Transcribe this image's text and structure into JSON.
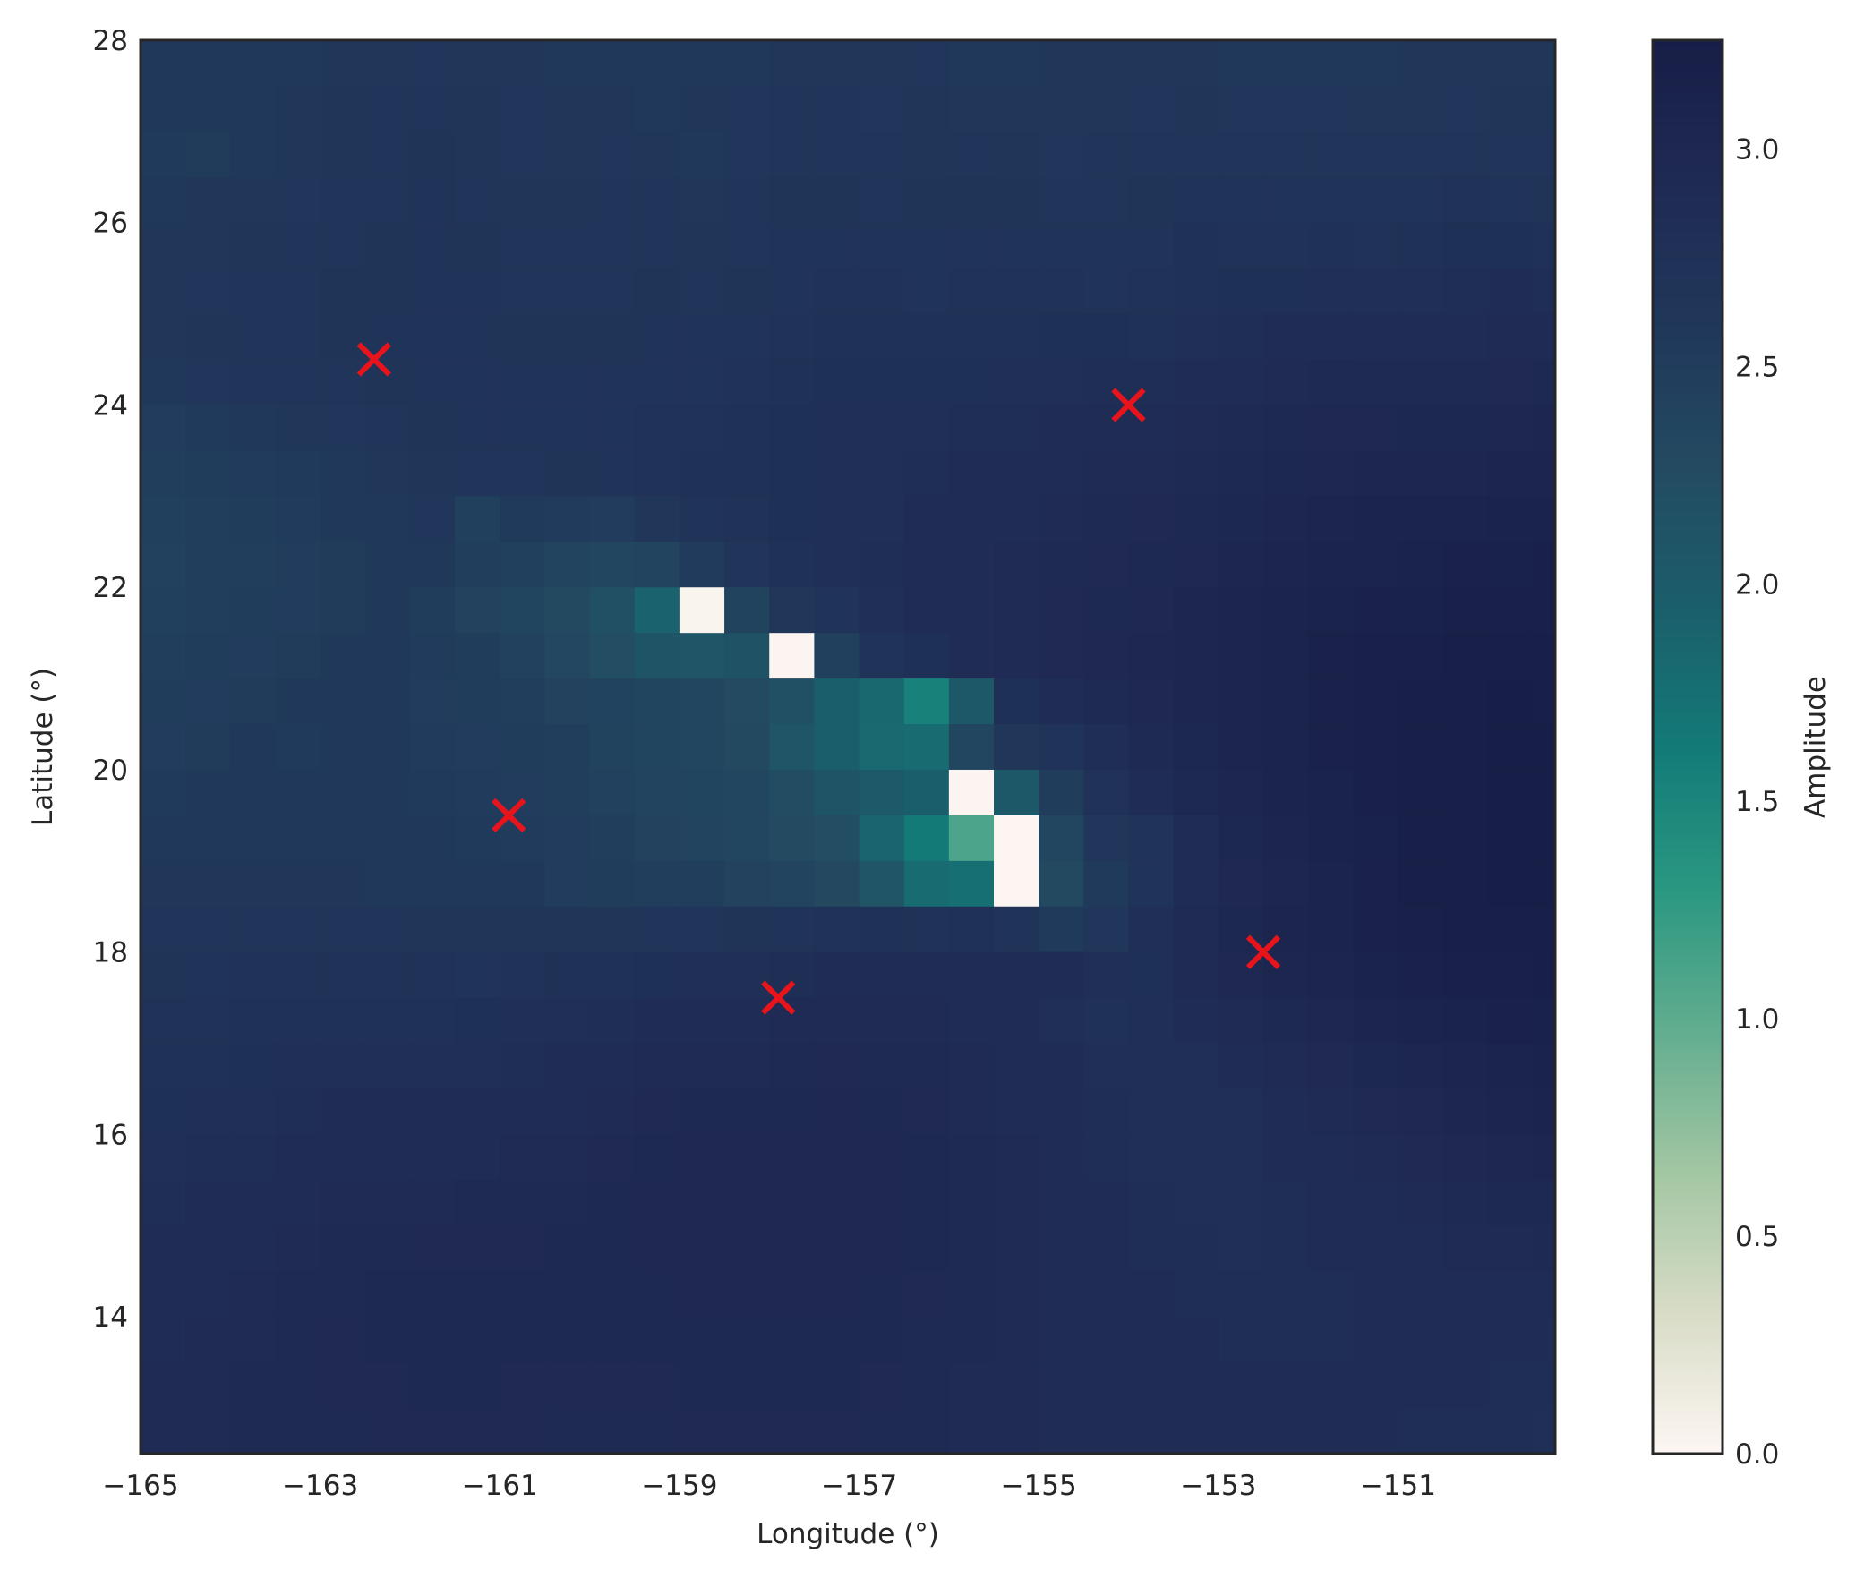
{
  "chart_data": {
    "type": "heatmap",
    "title": "",
    "xlabel": "Longitude (°)",
    "ylabel": "Latitude (°)",
    "xlim": [
      -165,
      -149.25
    ],
    "ylim": [
      12.5,
      28
    ],
    "xticks": [
      -165,
      -163,
      -161,
      -159,
      -157,
      -155,
      -153,
      -151
    ],
    "xtick_labels": [
      "−165",
      "−163",
      "−161",
      "−159",
      "−157",
      "−155",
      "−153",
      "−151"
    ],
    "yticks": [
      14,
      16,
      18,
      20,
      22,
      24,
      26,
      28
    ],
    "ytick_labels": [
      "14",
      "16",
      "18",
      "20",
      "22",
      "24",
      "26",
      "28"
    ],
    "grid": false,
    "cell_size_deg": 0.5,
    "colorbar": {
      "label": "Amplitude",
      "min": 0.0,
      "max": 3.25,
      "ticks": [
        0.0,
        0.5,
        1.0,
        1.5,
        2.0,
        2.5,
        3.0
      ],
      "tick_labels": [
        "0.0",
        "0.5",
        "1.0",
        "1.5",
        "2.0",
        "2.5",
        "3.0"
      ],
      "colormap_stops": [
        "#fdf6f3",
        "#d8dcc6",
        "#a2c6a2",
        "#61ad8f",
        "#2a9781",
        "#137a77",
        "#1b5e6b",
        "#234a61",
        "#20375a",
        "#1f2a53",
        "#171e47"
      ]
    },
    "grid_data": {
      "lon_start": -165,
      "lat_top": 28,
      "rows": [
        "2.58 2.58 2.56 2.58 2.60 2.60 2.62 2.61 2.60 2.57 2.58 2.57 2.58 2.58 2.60 2.61 2.60 2.62 2.59 2.59 2.60 2.60 2.61 2.61 2.59 2.59 2.59 2.59 2.60 2.61 2.61 2.60",
        "2.58 2.57 2.59 2.61 2.63 2.64 2.66 2.63 2.62 2.60 2.61 2.59 2.60 2.62 2.64 2.65 2.62 2.63 2.61 2.60 2.60 2.61 2.62 2.63 2.62 2.62 2.62 2.61 2.61 2.62 2.63 2.63",
        "2.55 2.54 2.57 2.60 2.63 2.66 2.68 2.63 2.62 2.61 2.62 2.61 2.59 2.62 2.66 2.66 2.64 2.63 2.64 2.63 2.62 2.64 2.64 2.64 2.64 2.65 2.65 2.64 2.64 2.66 2.66 2.64",
        "2.58 2.60 2.61 2.62 2.64 2.66 2.69 2.65 2.63 2.63 2.65 2.64 2.61 2.64 2.67 2.67 2.66 2.67 2.67 2.68 2.66 2.66 2.68 2.70 2.69 2.69 2.70 2.69 2.70 2.72 2.70 2.68",
        "2.60 2.61 2.63 2.64 2.66 2.68 2.69 2.67 2.65 2.64 2.66 2.66 2.63 2.66 2.69 2.70 2.69 2.70 2.71 2.71 2.69 2.69 2.71 2.74 2.73 2.73 2.74 2.73 2.74 2.77 2.78 2.75",
        "2.61 2.62 2.64 2.65 2.67 2.68 2.70 2.69 2.66 2.66 2.66 2.67 2.66 2.68 2.70 2.73 2.72 2.71 2.72 2.73 2.72 2.71 2.73 2.76 2.77 2.78 2.79 2.80 2.80 2.82 2.84 2.83",
        "2.61 2.63 2.65 2.66 2.68 2.70 2.70 2.70 2.68 2.68 2.68 2.69 2.69 2.70 2.72 2.76 2.75 2.74 2.75 2.76 2.77 2.77 2.76 2.79 2.82 2.84 2.86 2.87 2.87 2.87 2.89 2.90",
        "2.58 2.62 2.64 2.64 2.66 2.68 2.70 2.71 2.69 2.69 2.69 2.70 2.71 2.73 2.74 2.78 2.78 2.77 2.78 2.79 2.81 2.82 2.82 2.84 2.87 2.90 2.92 2.93 2.93 2.93 2.94 2.96",
        "2.52 2.55 2.59 2.60 2.62 2.65 2.68 2.69 2.69 2.70 2.71 2.72 2.73 2.75 2.77 2.79 2.79 2.80 2.82 2.83 2.85 2.87 2.88 2.90 2.92 2.95 2.98 2.98 2.99 2.99 3.00 3.03",
        "2.47 2.50 2.53 2.55 2.57 2.60 2.63 2.65 2.66 2.68 2.70 2.72 2.74 2.76 2.78 2.80 2.81 2.83 2.84 2.86 2.88 2.90 2.91 2.93 2.96 2.99 3.01 3.03 3.04 3.04 3.05 3.07",
        "2.45 2.48 2.50 2.53 2.56 2.58 2.62 2.45 2.55 2.53 2.52 2.60 2.70 2.73 2.77 2.79 2.81 2.84 2.86 2.88 2.90 2.92 2.94 2.96 2.99 3.02 3.05 3.08 3.09 3.10 3.11 3.12",
        "2.43 2.46 2.48 2.51 2.54 2.58 2.58 2.48 2.44 2.38 2.35 2.38 2.53 2.64 2.76 2.80 2.82 2.84 2.87 2.90 2.92 2.94 2.96 2.98 3.02 3.05 3.08 3.10 3.12 3.14 3.15 3.16",
        "2.45 2.47 2.49 2.52 2.54 2.58 2.50 2.42 2.36 2.30 2.20 1.90 0.03 2.40 2.60 2.69 2.79 2.84 2.87 2.91 2.94 2.96 2.98 3.02 3.05 3.08 3.11 3.14 3.15 3.17 3.18 3.18",
        "2.48 2.49 2.52 2.54 2.57 2.59 2.53 2.49 2.43 2.32 2.22 2.12 2.10 2.15 0.02 2.45 2.70 2.78 2.86 2.90 2.94 2.97 3.00 3.03 3.07 3.10 3.13 3.16 3.18 3.20 3.22 3.21",
        "2.50 2.52 2.54 2.56 2.58 2.57 2.52 2.49 2.46 2.42 2.39 2.36 2.34 2.28 2.20 1.95 1.85 1.55 2.05 2.78 2.86 2.93 2.97 3.02 3.06 3.10 3.14 3.17 3.19 3.21 3.23 3.22",
        "2.52 2.54 2.56 2.55 2.56 2.56 2.53 2.51 2.49 2.46 2.40 2.36 2.34 2.30 2.10 1.95 1.82 1.80 2.35 2.60 2.70 2.83 2.92 2.99 3.05 3.09 3.13 3.17 3.20 3.22 3.24 3.24",
        "2.55 2.57 2.58 2.58 2.58 2.57 2.55 2.53 2.51 2.47 2.43 2.38 2.36 2.34 2.25 2.12 2.02 1.95 0.02 2.05 2.50 2.72 2.86 2.96 3.03 3.08 3.12 3.16 3.20 3.22 3.24 3.24",
        "2.58 2.59 2.59 2.59 2.58 2.57 2.56 2.55 2.53 2.51 2.47 2.42 2.38 2.34 2.28 2.22 1.88 1.62 1.10 0.01 2.35 2.62 2.70 2.85 2.99 3.06 3.11 3.15 3.20 3.22 3.23 3.24",
        "2.61 2.61 2.61 2.61 2.60 2.59 2.58 2.58 2.56 2.52 2.50 2.48 2.47 2.42 2.37 2.31 2.10 1.80 1.75 0.01 2.30 2.55 2.70 2.84 2.97 3.04 3.10 3.14 3.19 3.21 3.23 3.24",
        "2.64 2.64 2.66 2.66 2.66 2.64 2.63 2.63 2.63 2.63 2.63 2.64 2.64 2.68 2.70 2.72 2.74 2.72 2.74 2.70 2.55 2.62 2.80 2.91 2.99 3.05 3.09 3.13 3.17 3.19 3.21 3.22",
        "2.68 2.70 2.72 2.72 2.73 2.72 2.72 2.71 2.73 2.74 2.76 2.78 2.80 2.81 2.83 2.84 2.85 2.87 2.85 2.86 2.85 2.80 2.78 2.90 2.97 3.02 3.07 3.11 3.14 3.16 3.18 3.19",
        "2.72 2.73 2.74 2.75 2.76 2.76 2.76 2.77 2.79 2.81 2.82 2.84 2.86 2.87 2.89 2.90 2.90 2.89 2.86 2.85 2.81 2.76 2.79 2.84 2.89 2.95 3.00 3.05 3.09 3.12 3.14 3.15",
        "2.74 2.76 2.77 2.79 2.80 2.80 2.80 2.81 2.82 2.84 2.86 2.89 2.91 2.91 2.93 2.94 2.93 2.92 2.89 2.87 2.84 2.80 2.79 2.80 2.84 2.89 2.94 2.99 3.04 3.07 3.10 3.12",
        "2.77 2.79 2.80 2.82 2.84 2.84 2.85 2.85 2.86 2.88 2.91 2.94 2.95 2.95 2.96 2.97 2.96 2.94 2.90 2.87 2.85 2.82 2.79 2.79 2.81 2.86 2.90 2.94 2.98 3.02 3.05 3.08",
        "2.80 2.82 2.83 2.85 2.87 2.88 2.88 2.88 2.90 2.91 2.94 2.96 2.97 2.97 2.98 2.98 2.97 2.95 2.92 2.89 2.86 2.83 2.81 2.80 2.80 2.84 2.88 2.91 2.94 2.97 3.00 3.02",
        "2.82 2.84 2.86 2.88 2.90 2.91 2.91 2.92 2.93 2.93 2.95 2.97 2.98 2.98 2.98 2.98 2.97 2.95 2.93 2.90 2.87 2.84 2.82 2.81 2.81 2.82 2.86 2.88 2.91 2.93 2.95 2.96",
        "2.84 2.86 2.88 2.90 2.92 2.93 2.94 2.94 2.94 2.95 2.96 2.97 2.98 2.98 2.98 2.98 2.97 2.95 2.93 2.90 2.87 2.85 2.83 2.82 2.81 2.82 2.84 2.86 2.88 2.90 2.91 2.92",
        "2.86 2.88 2.90 2.92 2.93 2.95 2.95 2.95 2.95 2.95 2.96 2.96 2.97 2.97 2.97 2.97 2.96 2.94 2.92 2.90 2.88 2.86 2.84 2.83 2.82 2.82 2.83 2.84 2.86 2.87 2.88 2.88",
        "2.88 2.90 2.91 2.93 2.94 2.95 2.95 2.95 2.95 2.95 2.95 2.95 2.96 2.96 2.96 2.96 2.95 2.93 2.92 2.90 2.88 2.86 2.85 2.84 2.83 2.83 2.83 2.84 2.85 2.85 2.85 2.84",
        "2.89 2.90 2.92 2.93 2.94 2.94 2.95 2.95 2.94 2.94 2.94 2.94 2.95 2.95 2.95 2.95 2.94 2.93 2.91 2.89 2.87 2.86 2.85 2.84 2.84 2.84 2.84 2.84 2.84 2.84 2.83 2.82",
        "2.90 2.91 2.92 2.93 2.93 2.94 2.94 2.94 2.94 2.93 2.93 2.93 2.94 2.94 2.94 2.94 2.93 2.92 2.90 2.89 2.87 2.86 2.85 2.85 2.85 2.85 2.85 2.84 2.83 2.83 2.82 2.80",
        "2.90 2.91 2.92 2.92 2.93 2.93 2.93 2.93 2.93 2.93 2.93 2.93 2.93 2.93 2.93 2.93 2.92 2.91 2.90 2.88 2.87 2.86 2.86 2.85 2.85 2.85 2.85 2.84 2.83 2.82 2.81 2.79"
      ]
    },
    "markers": {
      "symbol": "x",
      "color": "#e8141c",
      "points": [
        {
          "lon": -162.4,
          "lat": 24.5
        },
        {
          "lon": -154.0,
          "lat": 24.0
        },
        {
          "lon": -160.9,
          "lat": 19.5
        },
        {
          "lon": -152.5,
          "lat": 18.0
        },
        {
          "lon": -157.9,
          "lat": 17.5
        }
      ]
    }
  }
}
